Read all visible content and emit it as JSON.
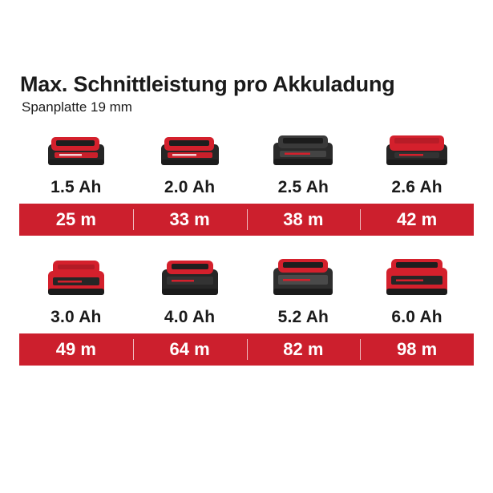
{
  "title": "Max. Schnittleistung pro Akkuladung",
  "subtitle": "Spanplatte 19 mm",
  "colors": {
    "accent": "#cc1f2d",
    "battery_body": "#2b2b2b",
    "battery_red": "#d4202c"
  },
  "rows": [
    {
      "items": [
        {
          "capacity": "1.5 Ah",
          "result": "25 m",
          "icon": "battery-pack-icon"
        },
        {
          "capacity": "2.0 Ah",
          "result": "33 m",
          "icon": "battery-pack-icon"
        },
        {
          "capacity": "2.5 Ah",
          "result": "38 m",
          "icon": "battery-pack-icon"
        },
        {
          "capacity": "2.6 Ah",
          "result": "42 m",
          "icon": "battery-pack-icon"
        }
      ]
    },
    {
      "items": [
        {
          "capacity": "3.0 Ah",
          "result": "49 m",
          "icon": "battery-pack-icon"
        },
        {
          "capacity": "4.0 Ah",
          "result": "64 m",
          "icon": "battery-pack-icon"
        },
        {
          "capacity": "5.2 Ah",
          "result": "82 m",
          "icon": "battery-pack-icon"
        },
        {
          "capacity": "6.0 Ah",
          "result": "98 m",
          "icon": "battery-pack-icon"
        }
      ]
    }
  ]
}
